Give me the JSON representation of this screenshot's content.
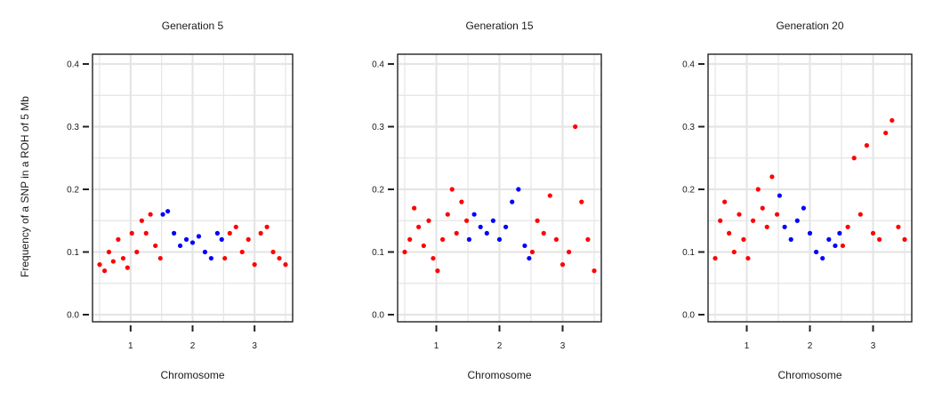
{
  "y_axis_label": "Frequency of a SNP in a ROH of 5 Mb",
  "colors": {
    "odd_chromosome": "#ff0000",
    "even_chromosome": "#0000ff",
    "grid": "#e5e5e5",
    "frame": "#222222"
  },
  "chart_data": [
    {
      "type": "scatter",
      "title": "Generation 5",
      "xlabel": "Chromosome",
      "ylabel": "Frequency of a SNP in a ROH of 5 Mb",
      "x_ticks": [
        "1",
        "2",
        "3"
      ],
      "y_ticks": [
        "0.0",
        "0.1",
        "0.2",
        "0.3",
        "0.4"
      ],
      "xlim": [
        0.5,
        3.5
      ],
      "ylim": [
        0,
        0.4
      ],
      "grid": true,
      "series": [
        {
          "chromosome": "1",
          "color": "#ff0000",
          "x": [
            0.5,
            0.58,
            0.65,
            0.72,
            0.8,
            0.88,
            0.95,
            1.02,
            1.1,
            1.18,
            1.25,
            1.32,
            1.4,
            1.48
          ],
          "y": [
            0.08,
            0.07,
            0.1,
            0.085,
            0.12,
            0.09,
            0.075,
            0.13,
            0.1,
            0.15,
            0.13,
            0.16,
            0.11,
            0.09
          ]
        },
        {
          "chromosome": "2",
          "color": "#0000ff",
          "x": [
            1.52,
            1.6,
            1.7,
            1.8,
            1.9,
            2.0,
            2.1,
            2.2,
            2.3,
            2.4,
            2.47
          ],
          "y": [
            0.16,
            0.165,
            0.13,
            0.11,
            0.12,
            0.115,
            0.125,
            0.1,
            0.09,
            0.13,
            0.12
          ]
        },
        {
          "chromosome": "3",
          "color": "#ff0000",
          "x": [
            2.52,
            2.6,
            2.7,
            2.8,
            2.9,
            3.0,
            3.1,
            3.2,
            3.3,
            3.4,
            3.5
          ],
          "y": [
            0.09,
            0.13,
            0.14,
            0.1,
            0.12,
            0.08,
            0.13,
            0.14,
            0.1,
            0.09,
            0.08
          ]
        }
      ]
    },
    {
      "type": "scatter",
      "title": "Generation 15",
      "xlabel": "Chromosome",
      "ylabel": "Frequency of a SNP in a ROH of 5 Mb",
      "x_ticks": [
        "1",
        "2",
        "3"
      ],
      "y_ticks": [
        "0.0",
        "0.1",
        "0.2",
        "0.3",
        "0.4"
      ],
      "xlim": [
        0.5,
        3.5
      ],
      "ylim": [
        0,
        0.4
      ],
      "grid": true,
      "series": [
        {
          "chromosome": "1",
          "color": "#ff0000",
          "x": [
            0.5,
            0.58,
            0.65,
            0.72,
            0.8,
            0.88,
            0.95,
            1.02,
            1.1,
            1.18,
            1.25,
            1.32,
            1.4,
            1.48
          ],
          "y": [
            0.1,
            0.12,
            0.17,
            0.14,
            0.11,
            0.15,
            0.09,
            0.07,
            0.12,
            0.16,
            0.2,
            0.13,
            0.18,
            0.15
          ]
        },
        {
          "chromosome": "2",
          "color": "#0000ff",
          "x": [
            1.52,
            1.6,
            1.7,
            1.8,
            1.9,
            2.0,
            2.1,
            2.2,
            2.3,
            2.4,
            2.47
          ],
          "y": [
            0.12,
            0.16,
            0.14,
            0.13,
            0.15,
            0.12,
            0.14,
            0.18,
            0.2,
            0.11,
            0.09
          ]
        },
        {
          "chromosome": "3",
          "color": "#ff0000",
          "x": [
            2.52,
            2.6,
            2.7,
            2.8,
            2.9,
            3.0,
            3.1,
            3.2,
            3.3,
            3.4,
            3.5
          ],
          "y": [
            0.1,
            0.15,
            0.13,
            0.19,
            0.12,
            0.08,
            0.1,
            0.3,
            0.18,
            0.12,
            0.07
          ]
        }
      ]
    },
    {
      "type": "scatter",
      "title": "Generation 20",
      "xlabel": "Chromosome",
      "ylabel": "Frequency of a SNP in a ROH of 5 Mb",
      "x_ticks": [
        "1",
        "2",
        "3"
      ],
      "y_ticks": [
        "0.0",
        "0.1",
        "0.2",
        "0.3",
        "0.4"
      ],
      "xlim": [
        0.5,
        3.5
      ],
      "ylim": [
        0,
        0.4
      ],
      "grid": true,
      "series": [
        {
          "chromosome": "1",
          "color": "#ff0000",
          "x": [
            0.5,
            0.58,
            0.65,
            0.72,
            0.8,
            0.88,
            0.95,
            1.02,
            1.1,
            1.18,
            1.25,
            1.32,
            1.4,
            1.48
          ],
          "y": [
            0.09,
            0.15,
            0.18,
            0.13,
            0.1,
            0.16,
            0.12,
            0.09,
            0.15,
            0.2,
            0.17,
            0.14,
            0.22,
            0.16
          ]
        },
        {
          "chromosome": "2",
          "color": "#0000ff",
          "x": [
            1.52,
            1.6,
            1.7,
            1.8,
            1.9,
            2.0,
            2.1,
            2.2,
            2.3,
            2.4,
            2.47
          ],
          "y": [
            0.19,
            0.14,
            0.12,
            0.15,
            0.17,
            0.13,
            0.1,
            0.09,
            0.12,
            0.11,
            0.13
          ]
        },
        {
          "chromosome": "3",
          "color": "#ff0000",
          "x": [
            2.52,
            2.6,
            2.7,
            2.8,
            2.9,
            3.0,
            3.1,
            3.2,
            3.3,
            3.4,
            3.5
          ],
          "y": [
            0.11,
            0.14,
            0.25,
            0.16,
            0.27,
            0.13,
            0.12,
            0.29,
            0.31,
            0.14,
            0.12
          ]
        }
      ]
    }
  ]
}
